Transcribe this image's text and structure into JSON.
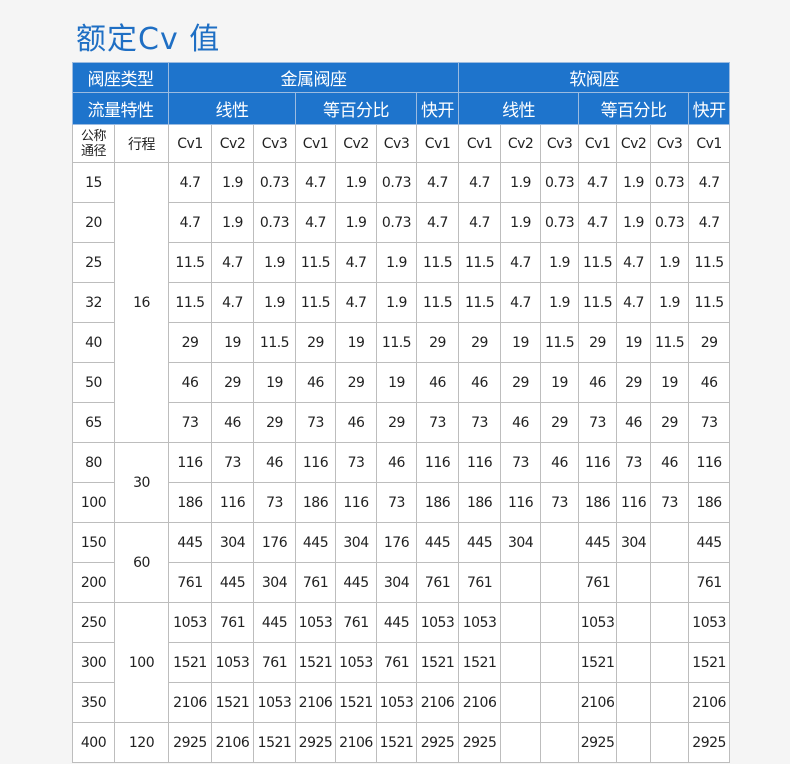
{
  "title": "额定Cv 值",
  "header": {
    "seat_type_label": "阀座类型",
    "metal": "金属阀座",
    "soft": "软阀座",
    "flow_label": "流量特性",
    "linear": "线性",
    "equal_pct": "等百分比",
    "quick": "快开",
    "dn_label": "公称通径",
    "stroke_label": "行程",
    "cv_cols": [
      "Cv1",
      "Cv2",
      "Cv3",
      "Cv1",
      "Cv2",
      "Cv3",
      "Cv1",
      "Cv1",
      "Cv2",
      "Cv3",
      "Cv1",
      "Cv2",
      "Cv3",
      "Cv1"
    ]
  },
  "strokes": [
    {
      "value": "16",
      "rows": 7
    },
    {
      "value": "30",
      "rows": 2
    },
    {
      "value": "60",
      "rows": 2
    },
    {
      "value": "100",
      "rows": 3
    },
    {
      "value": "120",
      "rows": 1
    }
  ],
  "rows": [
    {
      "dn": "15",
      "cv": [
        "4.7",
        "1.9",
        "0.73",
        "4.7",
        "1.9",
        "0.73",
        "4.7",
        "4.7",
        "1.9",
        "0.73",
        "4.7",
        "1.9",
        "0.73",
        "4.7"
      ]
    },
    {
      "dn": "20",
      "cv": [
        "4.7",
        "1.9",
        "0.73",
        "4.7",
        "1.9",
        "0.73",
        "4.7",
        "4.7",
        "1.9",
        "0.73",
        "4.7",
        "1.9",
        "0.73",
        "4.7"
      ]
    },
    {
      "dn": "25",
      "cv": [
        "11.5",
        "4.7",
        "1.9",
        "11.5",
        "4.7",
        "1.9",
        "11.5",
        "11.5",
        "4.7",
        "1.9",
        "11.5",
        "4.7",
        "1.9",
        "11.5"
      ]
    },
    {
      "dn": "32",
      "cv": [
        "11.5",
        "4.7",
        "1.9",
        "11.5",
        "4.7",
        "1.9",
        "11.5",
        "11.5",
        "4.7",
        "1.9",
        "11.5",
        "4.7",
        "1.9",
        "11.5"
      ]
    },
    {
      "dn": "40",
      "cv": [
        "29",
        "19",
        "11.5",
        "29",
        "19",
        "11.5",
        "29",
        "29",
        "19",
        "11.5",
        "29",
        "19",
        "11.5",
        "29"
      ]
    },
    {
      "dn": "50",
      "cv": [
        "46",
        "29",
        "19",
        "46",
        "29",
        "19",
        "46",
        "46",
        "29",
        "19",
        "46",
        "29",
        "19",
        "46"
      ]
    },
    {
      "dn": "65",
      "cv": [
        "73",
        "46",
        "29",
        "73",
        "46",
        "29",
        "73",
        "73",
        "46",
        "29",
        "73",
        "46",
        "29",
        "73"
      ]
    },
    {
      "dn": "80",
      "cv": [
        "116",
        "73",
        "46",
        "116",
        "73",
        "46",
        "116",
        "116",
        "73",
        "46",
        "116",
        "73",
        "46",
        "116"
      ]
    },
    {
      "dn": "100",
      "cv": [
        "186",
        "116",
        "73",
        "186",
        "116",
        "73",
        "186",
        "186",
        "116",
        "73",
        "186",
        "116",
        "73",
        "186"
      ]
    },
    {
      "dn": "150",
      "cv": [
        "445",
        "304",
        "176",
        "445",
        "304",
        "176",
        "445",
        "445",
        "304",
        "",
        "445",
        "304",
        "",
        "445"
      ]
    },
    {
      "dn": "200",
      "cv": [
        "761",
        "445",
        "304",
        "761",
        "445",
        "304",
        "761",
        "761",
        "",
        "",
        "761",
        "",
        "",
        "761"
      ]
    },
    {
      "dn": "250",
      "cv": [
        "1053",
        "761",
        "445",
        "1053",
        "761",
        "445",
        "1053",
        "1053",
        "",
        "",
        "1053",
        "",
        "",
        "1053"
      ]
    },
    {
      "dn": "300",
      "cv": [
        "1521",
        "1053",
        "761",
        "1521",
        "1053",
        "761",
        "1521",
        "1521",
        "",
        "",
        "1521",
        "",
        "",
        "1521"
      ]
    },
    {
      "dn": "350",
      "cv": [
        "2106",
        "1521",
        "1053",
        "2106",
        "1521",
        "1053",
        "2106",
        "2106",
        "",
        "",
        "2106",
        "",
        "",
        "2106"
      ]
    },
    {
      "dn": "400",
      "cv": [
        "2925",
        "2106",
        "1521",
        "2925",
        "2106",
        "1521",
        "2925",
        "2925",
        "",
        "",
        "2925",
        "",
        "",
        "2925"
      ]
    }
  ]
}
